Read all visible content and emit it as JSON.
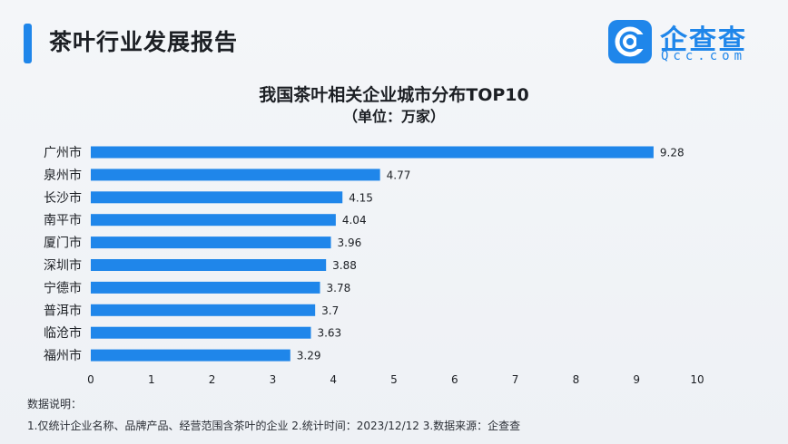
{
  "header": {
    "title": "茶叶行业发展报告"
  },
  "logo": {
    "name": "企查查",
    "domain": "Qcc.com",
    "icon": "qcc-logo-icon",
    "color": "#1f86ea"
  },
  "chart_data": {
    "type": "bar",
    "orientation": "horizontal",
    "title": "我国茶叶相关企业城市分布TOP10",
    "subtitle": "（单位：万家）",
    "categories": [
      "广州市",
      "泉州市",
      "长沙市",
      "南平市",
      "厦门市",
      "深圳市",
      "宁德市",
      "普洱市",
      "临沧市",
      "福州市"
    ],
    "values": [
      9.28,
      4.77,
      4.15,
      4.04,
      3.96,
      3.88,
      3.78,
      3.7,
      3.63,
      3.29
    ],
    "value_labels": [
      "9.28",
      "4.77",
      "4.15",
      "4.04",
      "3.96",
      "3.88",
      "3.78",
      "3.7",
      "3.63",
      "3.29"
    ],
    "xlim": [
      0,
      10
    ],
    "xticks": [
      "0",
      "1",
      "2",
      "3",
      "4",
      "5",
      "6",
      "7",
      "8",
      "9",
      "10"
    ],
    "grid": false,
    "bar_color": "#1f86ea"
  },
  "notes": {
    "title": "数据说明：",
    "body": "1.仅统计企业名称、品牌产品、经营范围含茶叶的企业 2.统计时间：2023/12/12 3.数据来源：企查查"
  }
}
